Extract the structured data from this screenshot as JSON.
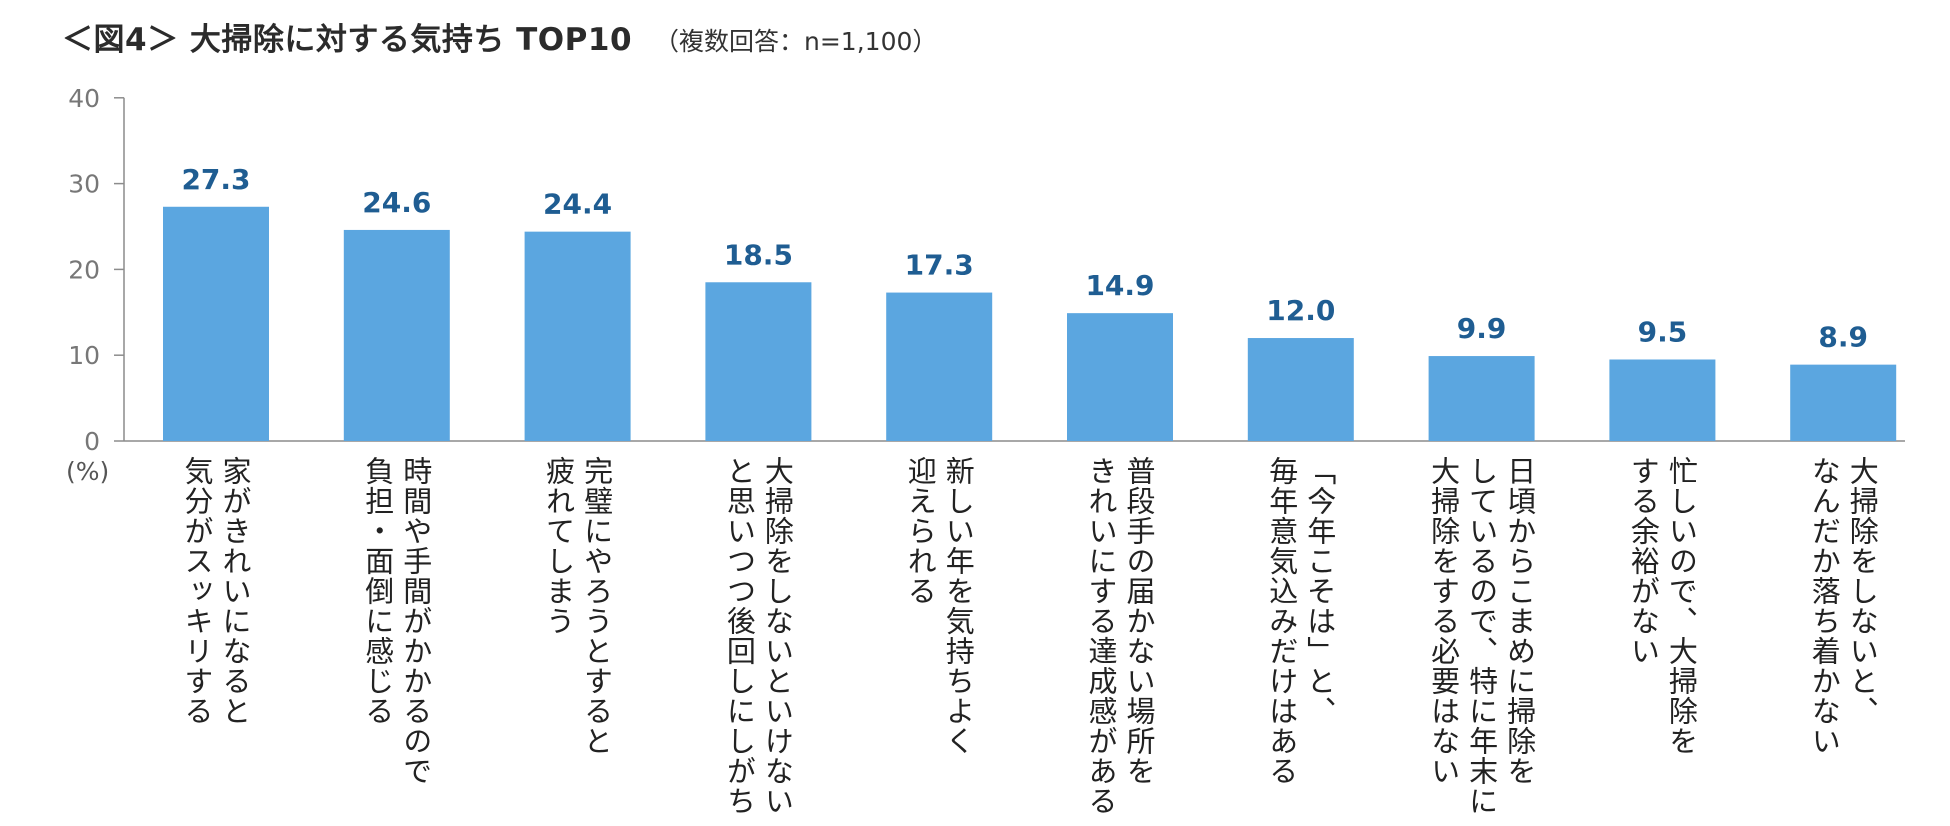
{
  "title": "＜図4＞ 大掃除に対する気持ち TOP10",
  "subtitle": "（複数回答：n=1,100）",
  "chart_data": {
    "type": "bar",
    "title": "＜図4＞ 大掃除に対する気持ち TOP10",
    "subtitle": "（複数回答：n=1,100）",
    "ylabel": "(%)",
    "xlabel": "",
    "ylim": [
      0,
      40
    ],
    "yticks": [
      0,
      10,
      20,
      30,
      40
    ],
    "grid": false,
    "legend": "none",
    "bar_color": "#5ba6e0",
    "label_color": "#1f5d92",
    "categories": [
      [
        "家がきれいになると",
        "気分がスッキリする"
      ],
      [
        "時間や手間がかかるので",
        "負担・面倒に感じる"
      ],
      [
        "完璧にやろうとすると",
        "疲れてしまう"
      ],
      [
        "大掃除をしないといけない",
        "と思いつつ後回しにしがち"
      ],
      [
        "新しい年を気持ちよく",
        "迎えられる"
      ],
      [
        "普段手の届かない場所を",
        "きれいにする達成感がある"
      ],
      [
        "「今年こそは」と、",
        "毎年意気込みだけはある"
      ],
      [
        "日頃からこまめに掃除を",
        "しているので、特に年末に",
        "大掃除をする必要はない"
      ],
      [
        "忙しいので、大掃除を",
        "する余裕がない"
      ],
      [
        "大掃除をしないと、",
        "なんだか落ち着かない"
      ]
    ],
    "values": [
      27.3,
      24.6,
      24.4,
      18.5,
      17.3,
      14.9,
      12.0,
      9.9,
      9.5,
      8.9
    ],
    "value_labels": [
      "27.3",
      "24.6",
      "24.4",
      "18.5",
      "17.3",
      "14.9",
      "12.0",
      "9.9",
      "9.5",
      "8.9"
    ]
  }
}
